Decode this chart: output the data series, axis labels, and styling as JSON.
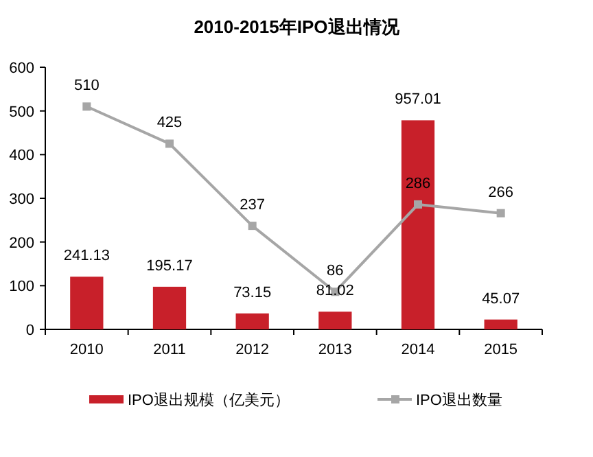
{
  "chart_data": {
    "type": "bar",
    "title": "2010-2015年IPO退出情况",
    "categories": [
      "2010",
      "2011",
      "2012",
      "2013",
      "2014",
      "2015"
    ],
    "series": [
      {
        "name": "IPO退出规模（亿美元）",
        "axis": "y2",
        "color": "#c8202a",
        "values": [
          241.13,
          195.17,
          73.15,
          81.02,
          957.01,
          45.07
        ]
      },
      {
        "name": "IPO退出数量",
        "type": "line",
        "color": "#a6a6a6",
        "marker": "square",
        "values": [
          510,
          425,
          237,
          86,
          286,
          266
        ]
      }
    ],
    "ylim": [
      0,
      600
    ],
    "yticks": [
      0,
      100,
      200,
      300,
      400,
      500,
      600
    ],
    "y2lim": [
      0,
      1200
    ],
    "data_labels": true,
    "grid": false,
    "legend": "bottom"
  }
}
